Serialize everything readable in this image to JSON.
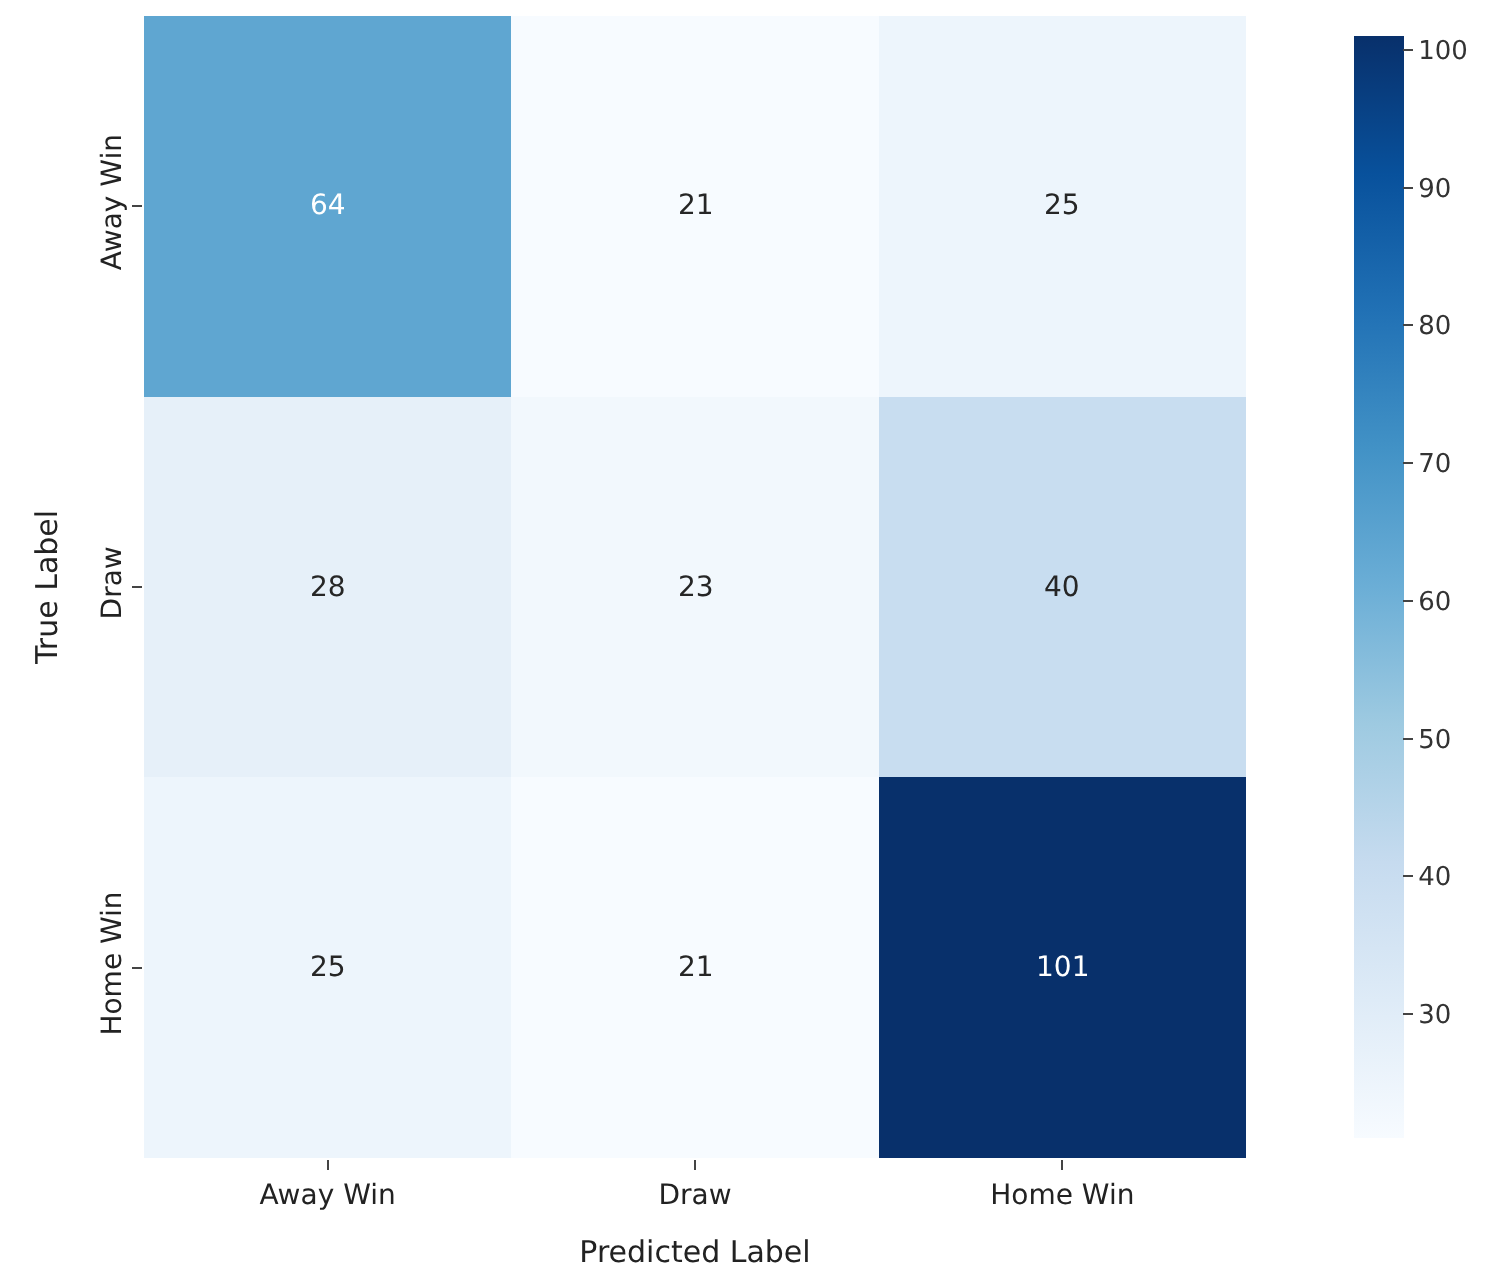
{
  "chart_data": {
    "type": "heatmap",
    "categories": [
      "Away Win",
      "Draw",
      "Home Win"
    ],
    "y_categories": [
      "Away Win",
      "Draw",
      "Home Win"
    ],
    "cells": [
      [
        64,
        21,
        25
      ],
      [
        28,
        23,
        40
      ],
      [
        25,
        21,
        101
      ]
    ],
    "clim": [
      21,
      101
    ],
    "cticks": [
      30,
      40,
      50,
      60,
      70,
      80,
      90,
      100
    ],
    "xlabel": "Predicted Label",
    "ylabel": "True Label",
    "data_labels": true
  }
}
